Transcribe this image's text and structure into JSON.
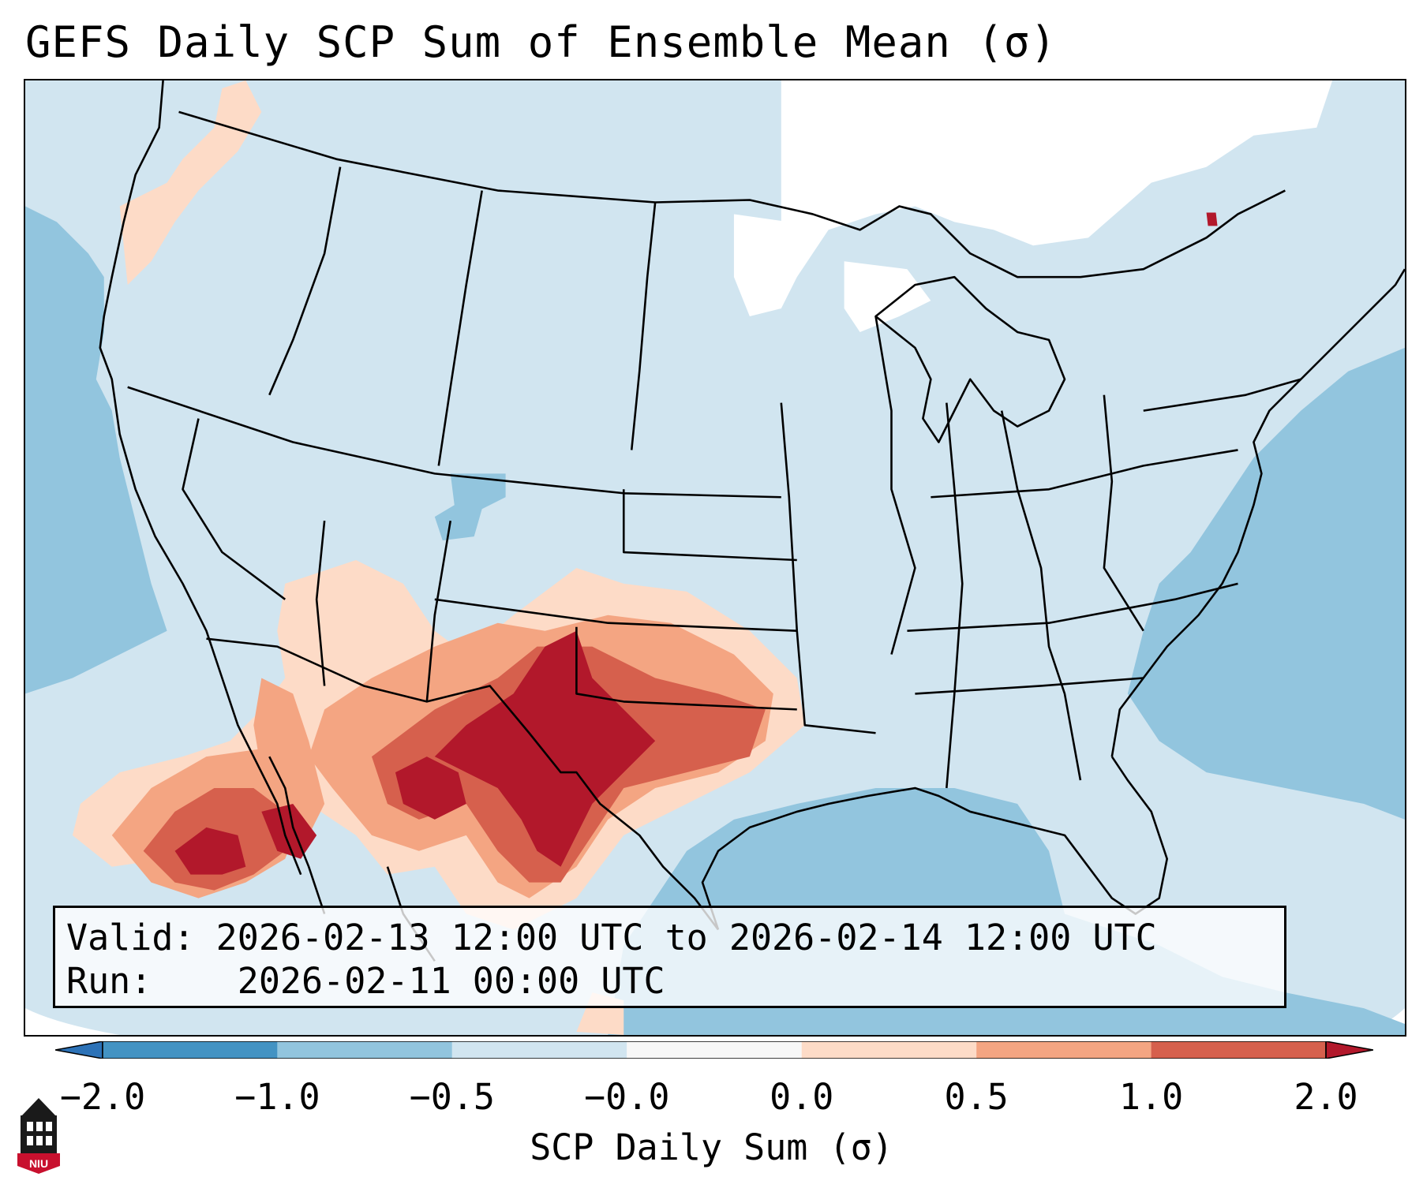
{
  "title": "GEFS Daily SCP Sum of Ensemble Mean (σ)",
  "info": {
    "valid_label": "Valid:",
    "valid_value": "2026-02-13 12:00 UTC to 2026-02-14 12:00 UTC",
    "run_label": "Run:",
    "run_value": "2026-02-11 00:00 UTC"
  },
  "colorbar": {
    "label": "SCP Daily Sum (σ)",
    "ticks": [
      "−2.0",
      "−1.0",
      "−0.5",
      "−0.0",
      "0.0",
      "0.5",
      "1.0",
      "2.0"
    ],
    "bins": [
      {
        "range": "< −2.0",
        "color": "#2c72b7"
      },
      {
        "range": "−2.0 to −1.0",
        "color": "#4393c3"
      },
      {
        "range": "−1.0 to −0.5",
        "color": "#92c5de"
      },
      {
        "range": "−0.5 to −0.0",
        "color": "#d1e5f0"
      },
      {
        "range": "−0.0 to 0.0",
        "color": "#f7f7f7"
      },
      {
        "range": "0.0 to 0.5",
        "color": "#fddbc7"
      },
      {
        "range": "0.5 to 1.0",
        "color": "#f4a582"
      },
      {
        "range": "1.0 to 2.0",
        "color": "#d6604d"
      },
      {
        "range": "> 2.0",
        "color": "#b2182b"
      }
    ]
  },
  "logo": {
    "text": "NIU",
    "color": "#c8102e"
  },
  "map": {
    "region": "Contiguous United States",
    "background_color": "#d1e5f0",
    "features": [
      {
        "name": "Pacific Ocean",
        "category": "below -0.5",
        "color": "#92c5de"
      },
      {
        "name": "Atlantic Ocean",
        "category": "below -0.5",
        "color": "#92c5de"
      },
      {
        "name": "Gulf of Mexico",
        "category": "below -0.5",
        "color": "#92c5de"
      },
      {
        "name": "Southern Plains / Texas",
        "category": "above 2.0",
        "color": "#b2182b"
      },
      {
        "name": "Northern Mexico",
        "category": "1.0 to 2.0",
        "color": "#d6604d"
      },
      {
        "name": "Great Lakes / Canada",
        "category": "near 0",
        "color": "#ffffff"
      }
    ]
  }
}
